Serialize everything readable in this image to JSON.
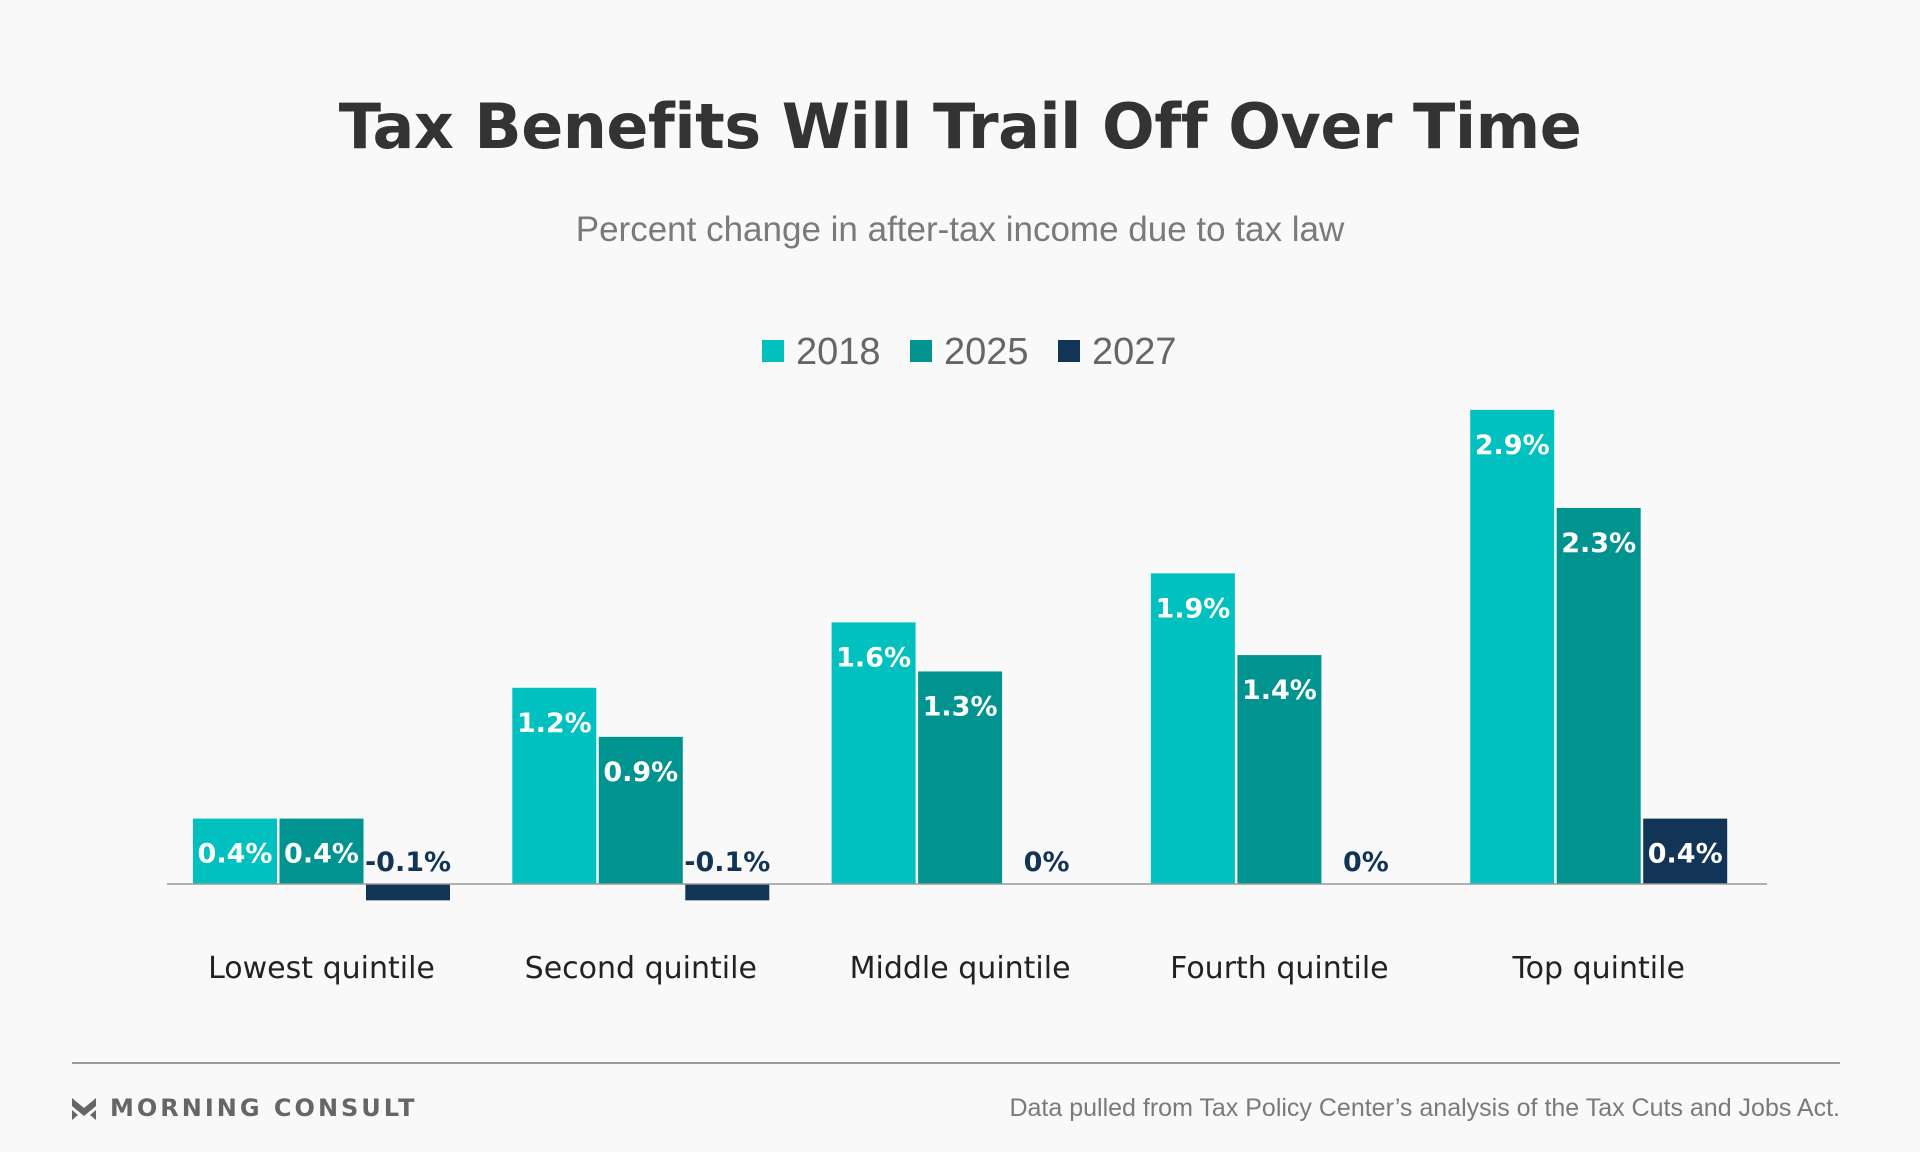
{
  "title": "Tax Benefits Will Trail Off Over Time",
  "subtitle": "Percent change in after-tax income due to tax law",
  "colors": {
    "background": "#f9f9f9",
    "series_2018": "#00c0c0",
    "series_2025": "#009390",
    "series_2027": "#123456",
    "label_inside": "#ffffff",
    "label_outside": "#123456",
    "category_text": "#222222",
    "axis": "#999999"
  },
  "chart_data": {
    "type": "bar",
    "title": "Tax Benefits Will Trail Off Over Time",
    "subtitle": "Percent change in after-tax income due to tax law",
    "categories": [
      "Lowest quintile",
      "Second quintile",
      "Middle quintile",
      "Fourth quintile",
      "Top quintile"
    ],
    "series": [
      {
        "name": "2018",
        "color": "#00c0c0",
        "values": [
          0.4,
          1.2,
          1.6,
          1.9,
          2.9
        ],
        "labels": [
          "0.4%",
          "1.2%",
          "1.6%",
          "1.9%",
          "2.9%"
        ]
      },
      {
        "name": "2025",
        "color": "#009390",
        "values": [
          0.4,
          0.9,
          1.3,
          1.4,
          2.3
        ],
        "labels": [
          "0.4%",
          "0.9%",
          "1.3%",
          "1.4%",
          "2.3%"
        ]
      },
      {
        "name": "2027",
        "color": "#123456",
        "values": [
          -0.1,
          -0.1,
          0,
          0,
          0.4
        ],
        "labels": [
          "-0.1%",
          "-0.1%",
          "0%",
          "0%",
          "0.4%"
        ]
      }
    ],
    "legend_position": "top-center",
    "grid": false,
    "ylim": [
      -0.1,
      2.9
    ]
  },
  "footer": {
    "brand": "MORNING CONSULT",
    "source": "Data pulled from Tax Policy Center’s analysis of the Tax Cuts and Jobs Act."
  }
}
